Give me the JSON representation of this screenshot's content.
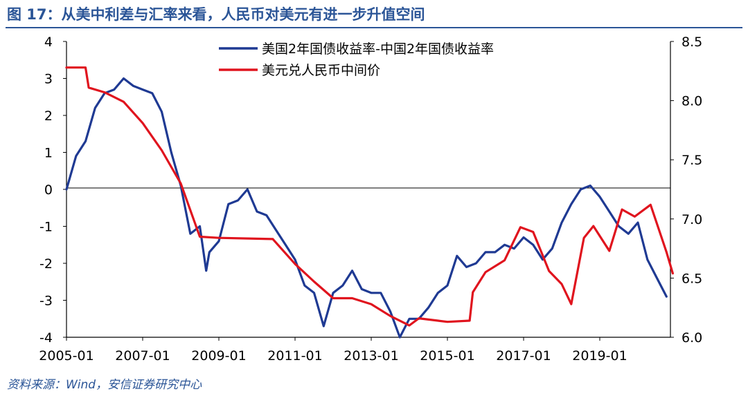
{
  "figure": {
    "title": "图 17：从美中利差与汇率来看，人民币对美元有进一步升值空间",
    "source": "资料来源：Wind，安信证券研究中心"
  },
  "chart_data": {
    "type": "line",
    "x_ticks": [
      "2005-01",
      "2007-01",
      "2009-01",
      "2011-01",
      "2013-01",
      "2015-01",
      "2017-01",
      "2019-01"
    ],
    "y_left": {
      "lim": [
        -4,
        4
      ],
      "ticks": [
        "4",
        "3",
        "2",
        "1",
        "0",
        "-1",
        "-2",
        "-3",
        "-4"
      ]
    },
    "y_right": {
      "lim": [
        6.0,
        8.5
      ],
      "ticks": [
        "8.5",
        "8.0",
        "7.5",
        "7.0",
        "6.5",
        "6.0"
      ]
    },
    "legend_position": "top-center",
    "grid": false,
    "series": [
      {
        "name": "美国2年国债收益率-中国2年国债收益率",
        "axis": "left",
        "color": "#1f3a93",
        "points": [
          [
            "2005-01",
            0.0
          ],
          [
            "2005-04",
            0.9
          ],
          [
            "2005-07",
            1.3
          ],
          [
            "2005-10",
            2.2
          ],
          [
            "2006-01",
            2.6
          ],
          [
            "2006-04",
            2.7
          ],
          [
            "2006-07",
            3.0
          ],
          [
            "2006-10",
            2.8
          ],
          [
            "2007-01",
            2.7
          ],
          [
            "2007-04",
            2.6
          ],
          [
            "2007-07",
            2.1
          ],
          [
            "2007-10",
            1.0
          ],
          [
            "2008-01",
            0.1
          ],
          [
            "2008-04",
            -1.2
          ],
          [
            "2008-07",
            -1.0
          ],
          [
            "2008-09",
            -2.2
          ],
          [
            "2008-10",
            -1.7
          ],
          [
            "2009-01",
            -1.4
          ],
          [
            "2009-04",
            -0.4
          ],
          [
            "2009-07",
            -0.3
          ],
          [
            "2009-10",
            0.0
          ],
          [
            "2010-01",
            -0.6
          ],
          [
            "2010-04",
            -0.7
          ],
          [
            "2010-07",
            -1.1
          ],
          [
            "2010-10",
            -1.5
          ],
          [
            "2011-01",
            -1.9
          ],
          [
            "2011-04",
            -2.6
          ],
          [
            "2011-07",
            -2.8
          ],
          [
            "2011-10",
            -3.7
          ],
          [
            "2012-01",
            -2.8
          ],
          [
            "2012-04",
            -2.6
          ],
          [
            "2012-07",
            -2.2
          ],
          [
            "2012-10",
            -2.7
          ],
          [
            "2013-01",
            -2.8
          ],
          [
            "2013-04",
            -2.8
          ],
          [
            "2013-07",
            -3.3
          ],
          [
            "2013-10",
            -4.0
          ],
          [
            "2014-01",
            -3.5
          ],
          [
            "2014-04",
            -3.5
          ],
          [
            "2014-07",
            -3.2
          ],
          [
            "2014-10",
            -2.8
          ],
          [
            "2015-01",
            -2.6
          ],
          [
            "2015-04",
            -1.8
          ],
          [
            "2015-07",
            -2.1
          ],
          [
            "2015-10",
            -2.0
          ],
          [
            "2016-01",
            -1.7
          ],
          [
            "2016-04",
            -1.7
          ],
          [
            "2016-07",
            -1.5
          ],
          [
            "2016-10",
            -1.6
          ],
          [
            "2017-01",
            -1.3
          ],
          [
            "2017-04",
            -1.5
          ],
          [
            "2017-07",
            -1.9
          ],
          [
            "2017-10",
            -1.6
          ],
          [
            "2018-01",
            -0.9
          ],
          [
            "2018-04",
            -0.4
          ],
          [
            "2018-07",
            0.0
          ],
          [
            "2018-10",
            0.1
          ],
          [
            "2019-01",
            -0.2
          ],
          [
            "2019-04",
            -0.6
          ],
          [
            "2019-07",
            -1.0
          ],
          [
            "2019-10",
            -1.2
          ],
          [
            "2020-01",
            -0.9
          ],
          [
            "2020-04",
            -1.9
          ],
          [
            "2020-07",
            -2.4
          ],
          [
            "2020-10",
            -2.9
          ]
        ]
      },
      {
        "name": "美元兑人民币中间价",
        "axis": "right",
        "color": "#e0141e",
        "points": [
          [
            "2005-01",
            8.28
          ],
          [
            "2005-07",
            8.28
          ],
          [
            "2005-08",
            8.11
          ],
          [
            "2006-01",
            8.07
          ],
          [
            "2006-07",
            7.99
          ],
          [
            "2007-01",
            7.81
          ],
          [
            "2007-07",
            7.58
          ],
          [
            "2008-01",
            7.3
          ],
          [
            "2008-07",
            6.85
          ],
          [
            "2009-01",
            6.84
          ],
          [
            "2010-06",
            6.83
          ],
          [
            "2011-01",
            6.62
          ],
          [
            "2011-07",
            6.47
          ],
          [
            "2012-01",
            6.33
          ],
          [
            "2012-07",
            6.33
          ],
          [
            "2013-01",
            6.28
          ],
          [
            "2013-07",
            6.18
          ],
          [
            "2014-01",
            6.1
          ],
          [
            "2014-04",
            6.16
          ],
          [
            "2014-10",
            6.14
          ],
          [
            "2015-01",
            6.13
          ],
          [
            "2015-08",
            6.14
          ],
          [
            "2015-09",
            6.38
          ],
          [
            "2016-01",
            6.55
          ],
          [
            "2016-07",
            6.65
          ],
          [
            "2016-12",
            6.93
          ],
          [
            "2017-04",
            6.89
          ],
          [
            "2017-09",
            6.56
          ],
          [
            "2018-01",
            6.45
          ],
          [
            "2018-04",
            6.28
          ],
          [
            "2018-08",
            6.84
          ],
          [
            "2018-11",
            6.94
          ],
          [
            "2019-04",
            6.73
          ],
          [
            "2019-08",
            7.08
          ],
          [
            "2019-12",
            7.02
          ],
          [
            "2020-05",
            7.12
          ],
          [
            "2020-10",
            6.72
          ],
          [
            "2020-12",
            6.54
          ]
        ]
      }
    ]
  }
}
